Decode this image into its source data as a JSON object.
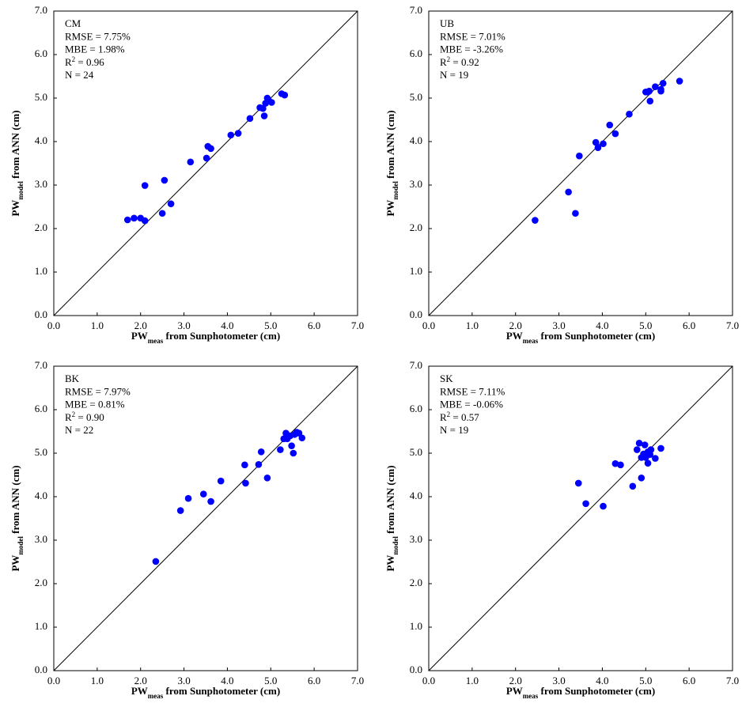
{
  "chart_data": [
    {
      "type": "scatter",
      "annotations": [
        "CM",
        "RMSE = 7.75%",
        "MBE = 1.98%",
        {
          "parts": [
            "R",
            "2",
            " = 0.96"
          ]
        },
        "N = 24"
      ],
      "x_label_parts": [
        "PW",
        "meas",
        " from Sunphotometer  (cm)"
      ],
      "y_label_parts": [
        "PW",
        "model",
        " from ANN (cm)"
      ],
      "color": "#0000ff",
      "grid": false,
      "x": [
        1.7,
        1.85,
        2.0,
        2.1,
        2.1,
        2.5,
        2.55,
        2.7,
        3.15,
        3.52,
        3.55,
        3.62,
        4.08,
        4.25,
        4.52,
        4.75,
        4.82,
        4.85,
        4.88,
        4.92,
        5.02,
        5.25,
        5.32,
        4.95
      ],
      "values": [
        2.2,
        2.24,
        2.24,
        2.18,
        2.99,
        2.35,
        3.11,
        2.57,
        3.53,
        3.62,
        3.89,
        3.84,
        4.15,
        4.19,
        4.53,
        4.78,
        4.76,
        4.59,
        4.88,
        5.0,
        4.9,
        5.1,
        5.07,
        4.95
      ],
      "xlim": [
        0,
        7
      ],
      "ylim": [
        0,
        7
      ],
      "xticks": [
        {
          "value": 0,
          "label": "0.0"
        },
        {
          "value": 1,
          "label": "1.0"
        },
        {
          "value": 2,
          "label": "2.0"
        },
        {
          "value": 3,
          "label": "3.0"
        },
        {
          "value": 4,
          "label": "4.0"
        },
        {
          "value": 5,
          "label": "5.0"
        },
        {
          "value": 6,
          "label": "6.0"
        },
        {
          "value": 7,
          "label": "7.0"
        }
      ],
      "yticks": [
        {
          "value": 0,
          "label": "0.0"
        },
        {
          "value": 1,
          "label": "1.0"
        },
        {
          "value": 2,
          "label": "2.0"
        },
        {
          "value": 3,
          "label": "3.0"
        },
        {
          "value": 4,
          "label": "4.0"
        },
        {
          "value": 5,
          "label": "5.0"
        },
        {
          "value": 6,
          "label": "6.0"
        },
        {
          "value": 7,
          "label": "7.0"
        }
      ]
    },
    {
      "type": "scatter",
      "annotations": [
        "UB",
        "RMSE = 7.01%",
        "MBE = -3.26%",
        {
          "parts": [
            "R",
            "2",
            " = 0.92"
          ]
        },
        "N = 19"
      ],
      "x_label_parts": [
        "PW",
        "meas",
        " from Sunphotometer  (cm)"
      ],
      "y_label_parts": [
        "PW",
        "model",
        " from ANN (cm)"
      ],
      "color": "#0000ff",
      "grid": false,
      "x": [
        2.45,
        3.22,
        3.38,
        3.47,
        3.85,
        3.9,
        4.02,
        4.17,
        4.3,
        4.62,
        5.0,
        5.05,
        5.1,
        5.22,
        5.35,
        5.35,
        5.4,
        5.78,
        5.08
      ],
      "values": [
        2.19,
        2.84,
        2.35,
        3.67,
        3.98,
        3.86,
        3.95,
        4.38,
        4.18,
        4.63,
        5.14,
        5.14,
        4.93,
        5.26,
        5.2,
        5.16,
        5.34,
        5.39,
        5.16
      ],
      "xlim": [
        0,
        7
      ],
      "ylim": [
        0,
        7
      ],
      "xticks": [
        {
          "value": 0,
          "label": "0.0"
        },
        {
          "value": 1,
          "label": "1.0"
        },
        {
          "value": 2,
          "label": "2.0"
        },
        {
          "value": 3,
          "label": "3.0"
        },
        {
          "value": 4,
          "label": "4.0"
        },
        {
          "value": 5,
          "label": "5.0"
        },
        {
          "value": 6,
          "label": "6.0"
        },
        {
          "value": 7,
          "label": "7.0"
        }
      ],
      "yticks": [
        {
          "value": 0,
          "label": "0.0"
        },
        {
          "value": 1,
          "label": "1.0"
        },
        {
          "value": 2,
          "label": "2.0"
        },
        {
          "value": 3,
          "label": "3.0"
        },
        {
          "value": 4,
          "label": "4.0"
        },
        {
          "value": 5,
          "label": "5.0"
        },
        {
          "value": 6,
          "label": "6.0"
        },
        {
          "value": 7,
          "label": "7.0"
        }
      ]
    },
    {
      "type": "scatter",
      "annotations": [
        "BK",
        "RMSE = 7.97%",
        "MBE = 0.81%",
        {
          "parts": [
            "R",
            "2",
            " = 0.90"
          ]
        },
        "N = 22"
      ],
      "x_label_parts": [
        "PW",
        "meas",
        " from Sunphotometer  (cm)"
      ],
      "y_label_parts": [
        "PW",
        "model",
        " from ANN (cm)"
      ],
      "color": "#0000ff",
      "grid": false,
      "x": [
        2.35,
        2.92,
        3.1,
        3.45,
        3.62,
        3.85,
        4.4,
        4.42,
        4.72,
        4.78,
        4.92,
        5.22,
        5.3,
        5.35,
        5.38,
        5.45,
        5.48,
        5.52,
        5.55,
        5.6,
        5.65,
        5.72
      ],
      "values": [
        2.51,
        3.68,
        3.96,
        4.06,
        3.89,
        4.36,
        4.73,
        4.31,
        4.74,
        5.03,
        4.43,
        5.08,
        5.33,
        5.46,
        5.33,
        5.4,
        5.17,
        5.0,
        5.43,
        5.48,
        5.46,
        5.35
      ],
      "xlim": [
        0,
        7
      ],
      "ylim": [
        0,
        7
      ],
      "xticks": [
        {
          "value": 0,
          "label": "0.0"
        },
        {
          "value": 1,
          "label": "1.0"
        },
        {
          "value": 2,
          "label": "2.0"
        },
        {
          "value": 3,
          "label": "3.0"
        },
        {
          "value": 4,
          "label": "4.0"
        },
        {
          "value": 5,
          "label": "5.0"
        },
        {
          "value": 6,
          "label": "6.0"
        },
        {
          "value": 7,
          "label": "7.0"
        }
      ],
      "yticks": [
        {
          "value": 0,
          "label": "0.0"
        },
        {
          "value": 1,
          "label": "1.0"
        },
        {
          "value": 2,
          "label": "2.0"
        },
        {
          "value": 3,
          "label": "3.0"
        },
        {
          "value": 4,
          "label": "4.0"
        },
        {
          "value": 5,
          "label": "5.0"
        },
        {
          "value": 6,
          "label": "6.0"
        },
        {
          "value": 7,
          "label": "7.0"
        }
      ]
    },
    {
      "type": "scatter",
      "annotations": [
        "SK",
        "RMSE = 7.11%",
        "MBE = -0.06%",
        {
          "parts": [
            "R",
            "2",
            " = 0.57"
          ]
        },
        "N = 19"
      ],
      "x_label_parts": [
        "PW",
        "meas",
        " from Sunphotometer  (cm)"
      ],
      "y_label_parts": [
        "PW",
        "model",
        " from ANN (cm)"
      ],
      "color": "#0000ff",
      "grid": false,
      "x": [
        3.45,
        3.62,
        4.02,
        4.3,
        4.42,
        4.7,
        4.8,
        4.85,
        4.9,
        4.9,
        4.98,
        5.0,
        5.05,
        5.05,
        5.1,
        5.12,
        5.22,
        5.35,
        4.95
      ],
      "values": [
        4.31,
        3.84,
        3.78,
        4.76,
        4.73,
        4.24,
        5.08,
        5.23,
        4.43,
        4.9,
        5.19,
        4.9,
        5.03,
        4.77,
        4.97,
        5.08,
        4.88,
        5.11,
        4.98
      ],
      "xlim": [
        0,
        7
      ],
      "ylim": [
        0,
        7
      ],
      "xticks": [
        {
          "value": 0,
          "label": "0.0"
        },
        {
          "value": 1,
          "label": "1.0"
        },
        {
          "value": 2,
          "label": "2.0"
        },
        {
          "value": 3,
          "label": "3.0"
        },
        {
          "value": 4,
          "label": "4.0"
        },
        {
          "value": 5,
          "label": "5.0"
        },
        {
          "value": 6,
          "label": "6.0"
        },
        {
          "value": 7,
          "label": "7.0"
        }
      ],
      "yticks": [
        {
          "value": 0,
          "label": "0.0"
        },
        {
          "value": 1,
          "label": "1.0"
        },
        {
          "value": 2,
          "label": "2.0"
        },
        {
          "value": 3,
          "label": "3.0"
        },
        {
          "value": 4,
          "label": "4.0"
        },
        {
          "value": 5,
          "label": "5.0"
        },
        {
          "value": 6,
          "label": "6.0"
        },
        {
          "value": 7,
          "label": "7.0"
        }
      ]
    }
  ]
}
